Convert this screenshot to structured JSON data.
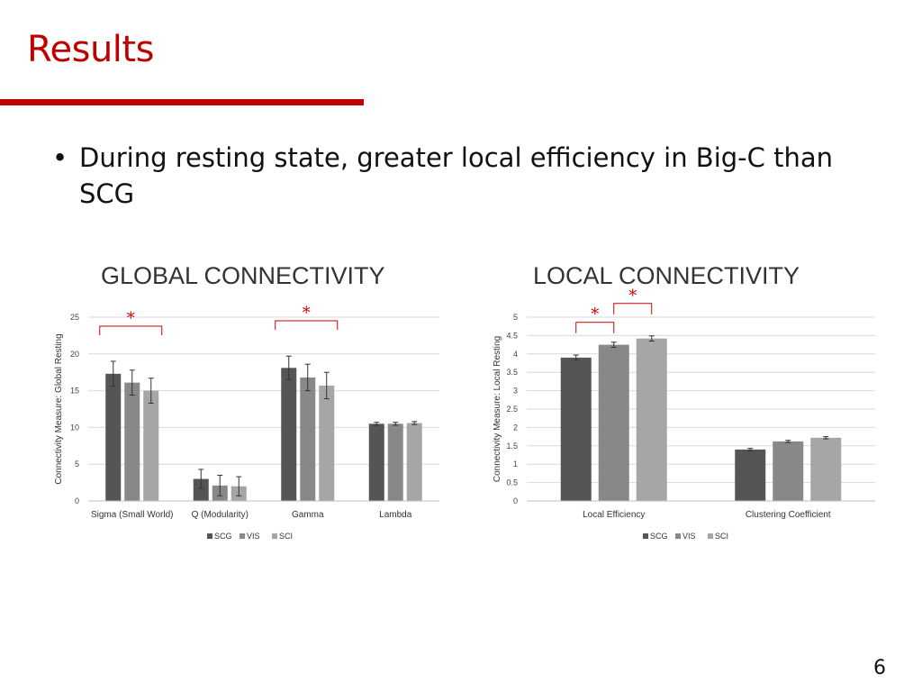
{
  "slide": {
    "title": "Results",
    "bullet": "During resting state, greater local efficiency in Big-C than SCG",
    "page_number": "6"
  },
  "colors": {
    "accent": "#c00000",
    "significance": "#cc0000",
    "series": [
      "#555555",
      "#888888",
      "#a6a6a6"
    ],
    "grid": "#d9d9d9"
  },
  "chart_data": [
    {
      "type": "bar",
      "title": "GLOBAL CONNECTIVITY",
      "ylabel": "Connectivity Measure: Global Resting",
      "ylim": [
        0,
        25
      ],
      "yticks": [
        0,
        5,
        10,
        15,
        20,
        25
      ],
      "grid": true,
      "legend_position": "bottom-center",
      "categories": [
        "Sigma (Small World)",
        "Q (Modularity)",
        "Gamma",
        "Lambda"
      ],
      "series": [
        {
          "name": "SCG",
          "values": [
            17.3,
            3.0,
            18.1,
            10.5
          ],
          "errors": [
            1.7,
            1.3,
            1.6,
            0.2
          ]
        },
        {
          "name": "VIS",
          "values": [
            16.1,
            2.1,
            16.8,
            10.5
          ],
          "errors": [
            1.7,
            1.4,
            1.8,
            0.2
          ]
        },
        {
          "name": "SCI",
          "values": [
            15.0,
            2.0,
            15.7,
            10.6
          ],
          "errors": [
            1.7,
            1.3,
            1.8,
            0.2
          ]
        }
      ],
      "significance": [
        {
          "category": 0,
          "from_series": 0,
          "to_series": 2,
          "label": "*"
        },
        {
          "category": 2,
          "from_series": 0,
          "to_series": 2,
          "label": "*"
        }
      ]
    },
    {
      "type": "bar",
      "title": "LOCAL CONNECTIVITY",
      "ylabel": "Connectivity Measure: Local Resting",
      "ylim": [
        0,
        5
      ],
      "yticks": [
        0,
        0.5,
        1,
        1.5,
        2,
        2.5,
        3,
        3.5,
        4,
        4.5,
        5
      ],
      "grid": true,
      "legend_position": "bottom-center",
      "categories": [
        "Local Efficiency",
        "Clustering Coefficient"
      ],
      "series": [
        {
          "name": "SCG",
          "values": [
            3.9,
            1.4
          ],
          "errors": [
            0.07,
            0.03
          ]
        },
        {
          "name": "VIS",
          "values": [
            4.25,
            1.62
          ],
          "errors": [
            0.07,
            0.03
          ]
        },
        {
          "name": "SCI",
          "values": [
            4.42,
            1.72
          ],
          "errors": [
            0.07,
            0.03
          ]
        }
      ],
      "significance": [
        {
          "category": 0,
          "from_series": 0,
          "to_series": 1,
          "label": "*"
        },
        {
          "category": 0,
          "from_series": 1,
          "to_series": 2,
          "label": "*"
        }
      ]
    }
  ]
}
